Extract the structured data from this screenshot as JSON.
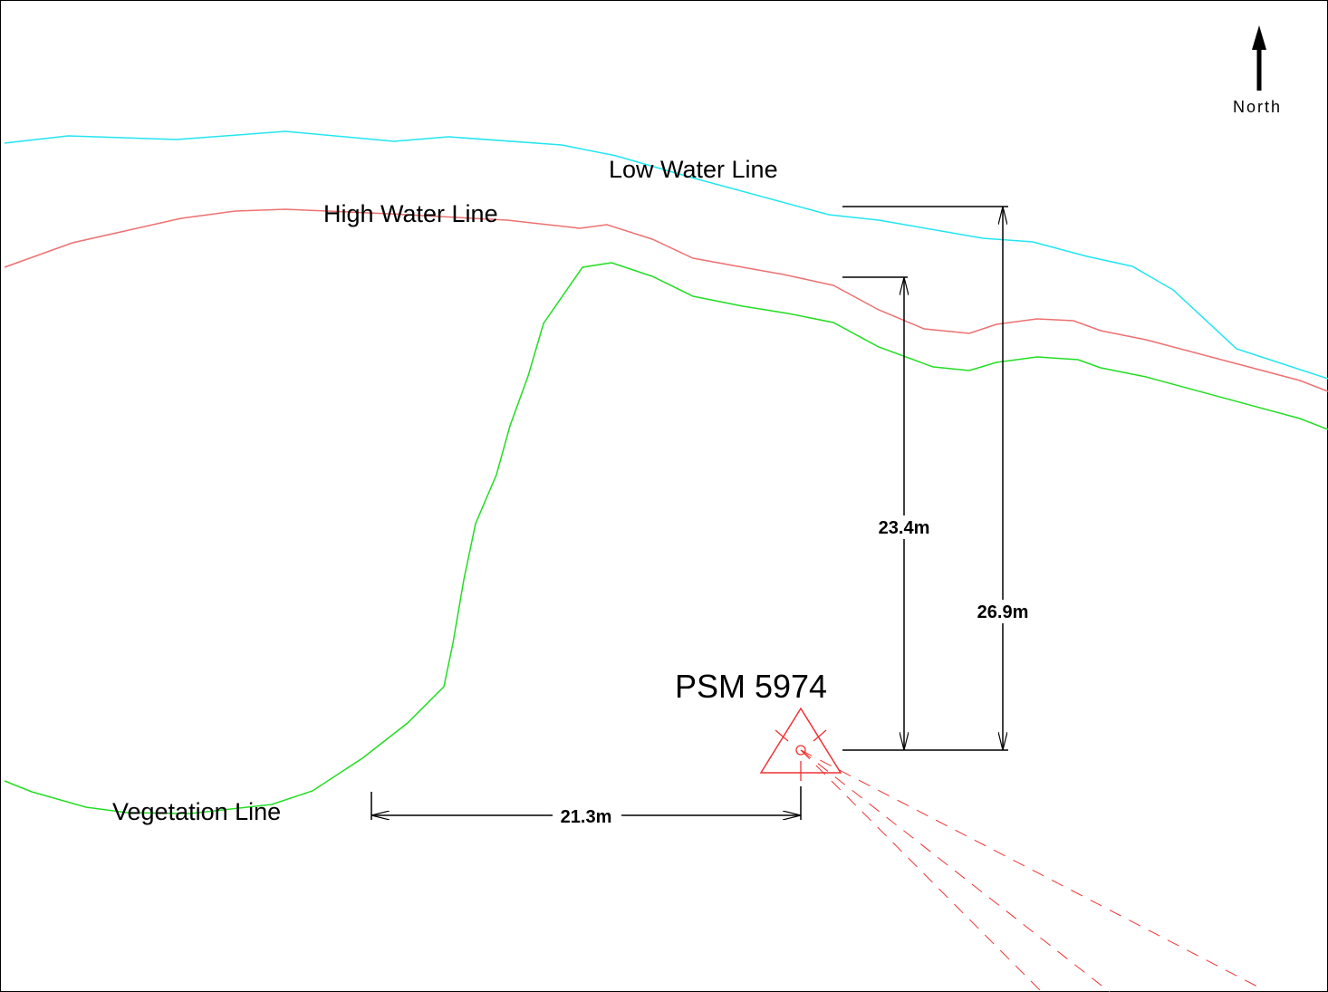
{
  "north": "North",
  "lines": {
    "low_water": "Low Water Line",
    "high_water": "High Water Line",
    "vegetation": "Vegetation Line"
  },
  "mark": "PSM 5974",
  "dimensions": {
    "vegetation_north": "23.4m",
    "low_water_north": "26.9m",
    "vegetation_west": "21.3m"
  }
}
